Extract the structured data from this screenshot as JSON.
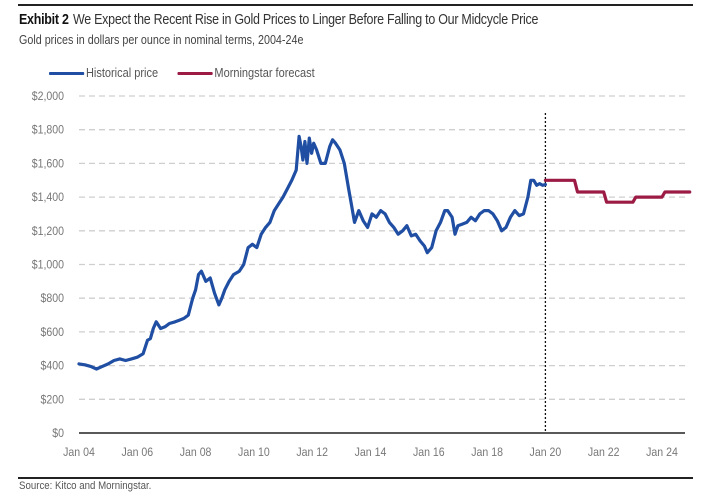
{
  "header": {
    "exhibit_label": "Exhibit 2",
    "title": "We Expect the Recent Rise in Gold Prices to Linger Before Falling to Our Midcycle Price",
    "subtitle": "Gold prices in dollars per ounce in nominal terms, 2004-24e"
  },
  "footer": {
    "source": "Source: Kitco and Morningstar."
  },
  "colors": {
    "historical": "#1f4ea3",
    "forecast": "#9b1b45",
    "gridline": "#cfcfcf",
    "axis": "#222222",
    "divider": "#111111"
  },
  "chart_data": {
    "type": "line",
    "title": "We Expect the Recent Rise in Gold Prices to Linger Before Falling to Our Midcycle Price",
    "subtitle": "Gold prices in dollars per ounce in nominal terms, 2004-24e",
    "xlabel": "",
    "ylabel": "",
    "xlim": [
      2004,
      2024.95
    ],
    "ylim": [
      0,
      2000
    ],
    "y_ticks": [
      0,
      200,
      400,
      600,
      800,
      1000,
      1200,
      1400,
      1600,
      1800,
      2000
    ],
    "y_tick_labels": [
      "$0",
      "$200",
      "$400",
      "$600",
      "$800",
      "$1,000",
      "$1,200",
      "$1,400",
      "$1,600",
      "$1,800",
      "$2,000"
    ],
    "x_ticks": [
      2004,
      2006,
      2008,
      2010,
      2012,
      2014,
      2016,
      2018,
      2020,
      2022,
      2024
    ],
    "x_tick_labels": [
      "Jan 04",
      "Jan 06",
      "Jan 08",
      "Jan 10",
      "Jan 12",
      "Jan 14",
      "Jan 16",
      "Jan 18",
      "Jan 20",
      "Jan 22",
      "Jan 24"
    ],
    "grid": "horizontal-dashed",
    "legend": "top-left",
    "forecast_divider_x": 2020.0,
    "series": [
      {
        "name": "Historical price",
        "color_key": "historical",
        "x": [
          2004.0,
          2004.2,
          2004.4,
          2004.6,
          2004.8,
          2005.0,
          2005.2,
          2005.4,
          2005.6,
          2005.8,
          2006.0,
          2006.2,
          2006.35,
          2006.45,
          2006.55,
          2006.65,
          2006.8,
          2006.95,
          2007.1,
          2007.3,
          2007.45,
          2007.6,
          2007.75,
          2007.9,
          2008.0,
          2008.1,
          2008.2,
          2008.35,
          2008.5,
          2008.65,
          2008.8,
          2008.9,
          2009.0,
          2009.15,
          2009.3,
          2009.5,
          2009.65,
          2009.8,
          2009.95,
          2010.1,
          2010.25,
          2010.4,
          2010.55,
          2010.7,
          2010.85,
          2011.0,
          2011.15,
          2011.3,
          2011.45,
          2011.55,
          2011.62,
          2011.68,
          2011.75,
          2011.82,
          2011.9,
          2011.98,
          2012.05,
          2012.15,
          2012.3,
          2012.45,
          2012.6,
          2012.7,
          2012.8,
          2012.95,
          2013.1,
          2013.25,
          2013.35,
          2013.45,
          2013.6,
          2013.75,
          2013.9,
          2014.05,
          2014.2,
          2014.35,
          2014.5,
          2014.65,
          2014.8,
          2014.95,
          2015.1,
          2015.25,
          2015.4,
          2015.55,
          2015.7,
          2015.85,
          2015.95,
          2016.1,
          2016.25,
          2016.4,
          2016.55,
          2016.65,
          2016.8,
          2016.9,
          2017.0,
          2017.15,
          2017.3,
          2017.45,
          2017.6,
          2017.75,
          2017.9,
          2018.05,
          2018.2,
          2018.35,
          2018.5,
          2018.65,
          2018.8,
          2018.95,
          2019.1,
          2019.25,
          2019.4,
          2019.5,
          2019.6,
          2019.7,
          2019.8,
          2019.9,
          2020.0
        ],
        "values": [
          410,
          405,
          395,
          380,
          395,
          410,
          430,
          440,
          430,
          440,
          450,
          470,
          550,
          560,
          620,
          660,
          620,
          630,
          650,
          660,
          670,
          680,
          700,
          800,
          850,
          940,
          960,
          900,
          920,
          830,
          760,
          800,
          850,
          900,
          940,
          960,
          1000,
          1100,
          1120,
          1100,
          1180,
          1220,
          1250,
          1320,
          1360,
          1400,
          1450,
          1500,
          1560,
          1760,
          1700,
          1620,
          1730,
          1600,
          1750,
          1660,
          1720,
          1680,
          1600,
          1600,
          1700,
          1740,
          1720,
          1680,
          1600,
          1450,
          1350,
          1250,
          1320,
          1260,
          1220,
          1300,
          1280,
          1320,
          1300,
          1250,
          1220,
          1180,
          1200,
          1230,
          1170,
          1180,
          1140,
          1110,
          1070,
          1100,
          1200,
          1250,
          1320,
          1320,
          1280,
          1180,
          1230,
          1240,
          1250,
          1280,
          1260,
          1300,
          1320,
          1320,
          1300,
          1260,
          1200,
          1220,
          1280,
          1320,
          1290,
          1300,
          1400,
          1500,
          1500,
          1470,
          1480,
          1470,
          1475
        ]
      },
      {
        "name": "Morningstar forecast",
        "color_key": "forecast",
        "x": [
          2020.0,
          2021.0,
          2021.1,
          2022.0,
          2022.1,
          2023.0,
          2023.1,
          2024.0,
          2024.1,
          2024.95
        ],
        "values": [
          1500,
          1500,
          1430,
          1430,
          1370,
          1370,
          1400,
          1400,
          1430,
          1430
        ]
      }
    ]
  }
}
